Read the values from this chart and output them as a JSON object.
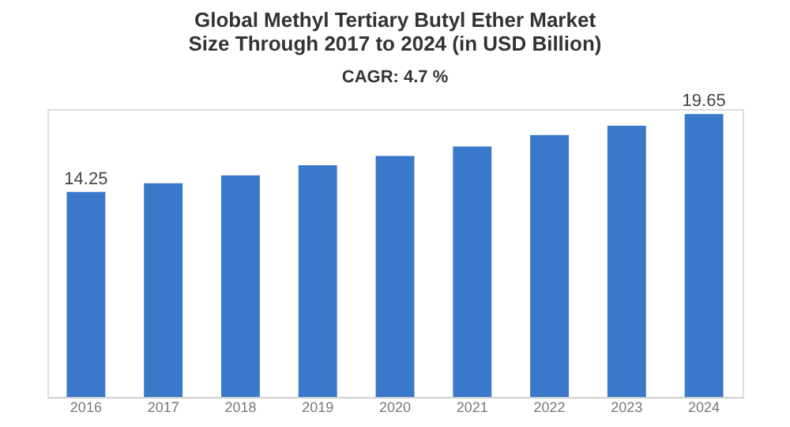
{
  "chart_data": {
    "type": "bar",
    "title": "Global Methyl Tertiary Butyl Ether Market Size Through 2017 to 2024 (in USD Billion)",
    "subtitle": "CAGR: 4.7 %",
    "categories": [
      "2016",
      "2017",
      "2018",
      "2019",
      "2020",
      "2021",
      "2022",
      "2023",
      "2024"
    ],
    "values": [
      14.25,
      14.85,
      15.4,
      16.1,
      16.75,
      17.4,
      18.2,
      18.85,
      19.65
    ],
    "value_labels": [
      "14.25",
      null,
      null,
      null,
      null,
      null,
      null,
      null,
      "19.65"
    ],
    "ylim": [
      0,
      20
    ],
    "tick_labels": "x",
    "color": "#3a78c9"
  }
}
